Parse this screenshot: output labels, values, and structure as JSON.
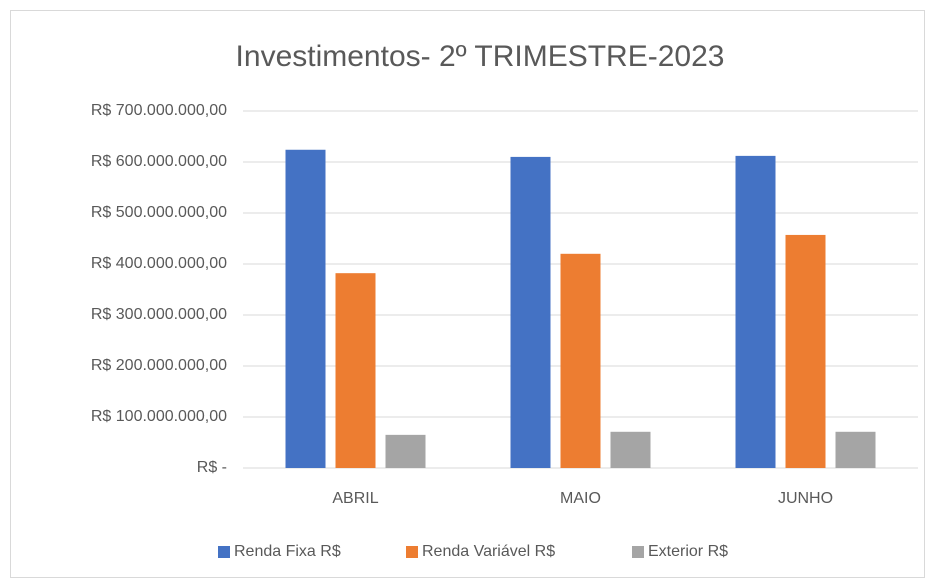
{
  "chart_data": {
    "type": "bar",
    "title": "Investimentos- 2º TRIMESTRE-2023",
    "categories": [
      "ABRIL",
      "MAIO",
      "JUNHO"
    ],
    "series": [
      {
        "name": "Renda Fixa R$",
        "color": "#4472c4",
        "values": [
          624000000,
          610000000,
          612000000
        ]
      },
      {
        "name": "Renda Variável R$",
        "color": "#ed7d31",
        "values": [
          382000000,
          420000000,
          457000000
        ]
      },
      {
        "name": "Exterior R$",
        "color": "#a5a5a5",
        "values": [
          65000000,
          71000000,
          71000000
        ]
      }
    ],
    "ylim": [
      0,
      700000000
    ],
    "yticks": [
      {
        "value": 0,
        "label": "R$ -"
      },
      {
        "value": 100000000,
        "label": "R$ 100.000.000,00"
      },
      {
        "value": 200000000,
        "label": "R$ 200.000.000,00"
      },
      {
        "value": 300000000,
        "label": "R$ 300.000.000,00"
      },
      {
        "value": 400000000,
        "label": "R$ 400.000.000,00"
      },
      {
        "value": 500000000,
        "label": "R$ 500.000.000,00"
      },
      {
        "value": 600000000,
        "label": "R$ 600.000.000,00"
      },
      {
        "value": 700000000,
        "label": "R$ 700.000.000,00"
      }
    ],
    "grid": true,
    "legend": "bottom"
  }
}
